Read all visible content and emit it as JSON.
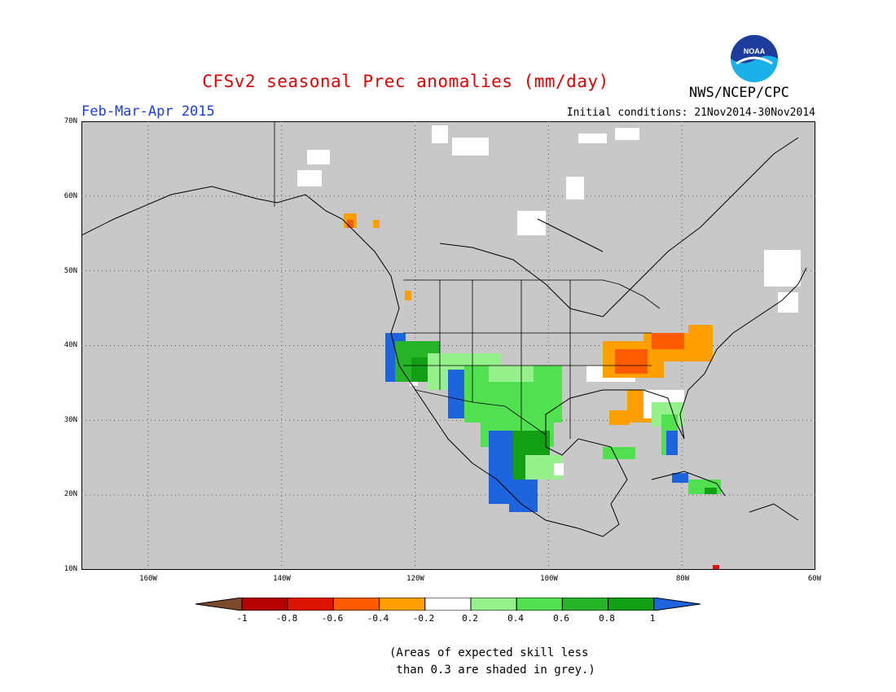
{
  "header": {
    "title": "CFSv2 seasonal Prec anomalies (mm/day)",
    "season": "Feb-Mar-Apr 2015",
    "agency": "NWS/NCEP/CPC",
    "initial_conditions": "Initial conditions: 21Nov2014-30Nov2014",
    "logo_text": "NOAA"
  },
  "map": {
    "projection": "lat-lon",
    "lat_range": [
      10,
      70
    ],
    "lon_range": [
      -170,
      -60
    ],
    "lat_labels": [
      "70N",
      "60N",
      "50N",
      "40N",
      "30N",
      "20N",
      "10N"
    ],
    "lon_labels": [
      "160W",
      "140W",
      "120W",
      "100W",
      "80W",
      "60W"
    ],
    "background_color": "#c8c8c8",
    "grid": "dotted"
  },
  "colorbar": {
    "labels": [
      "-1",
      "-0.8",
      "-0.6",
      "-0.4",
      "-0.2",
      "0.2",
      "0.4",
      "0.6",
      "0.8",
      "1"
    ],
    "colors": [
      "#7a4a2a",
      "#b40000",
      "#dc1400",
      "#ff5a00",
      "#ffa000",
      "#ffffff",
      "#96f08c",
      "#50e050",
      "#28b428",
      "#14a014",
      "#1e64dc"
    ]
  },
  "note": "(Areas of expected skill less\n than 0.3 are shaded in grey.)"
}
